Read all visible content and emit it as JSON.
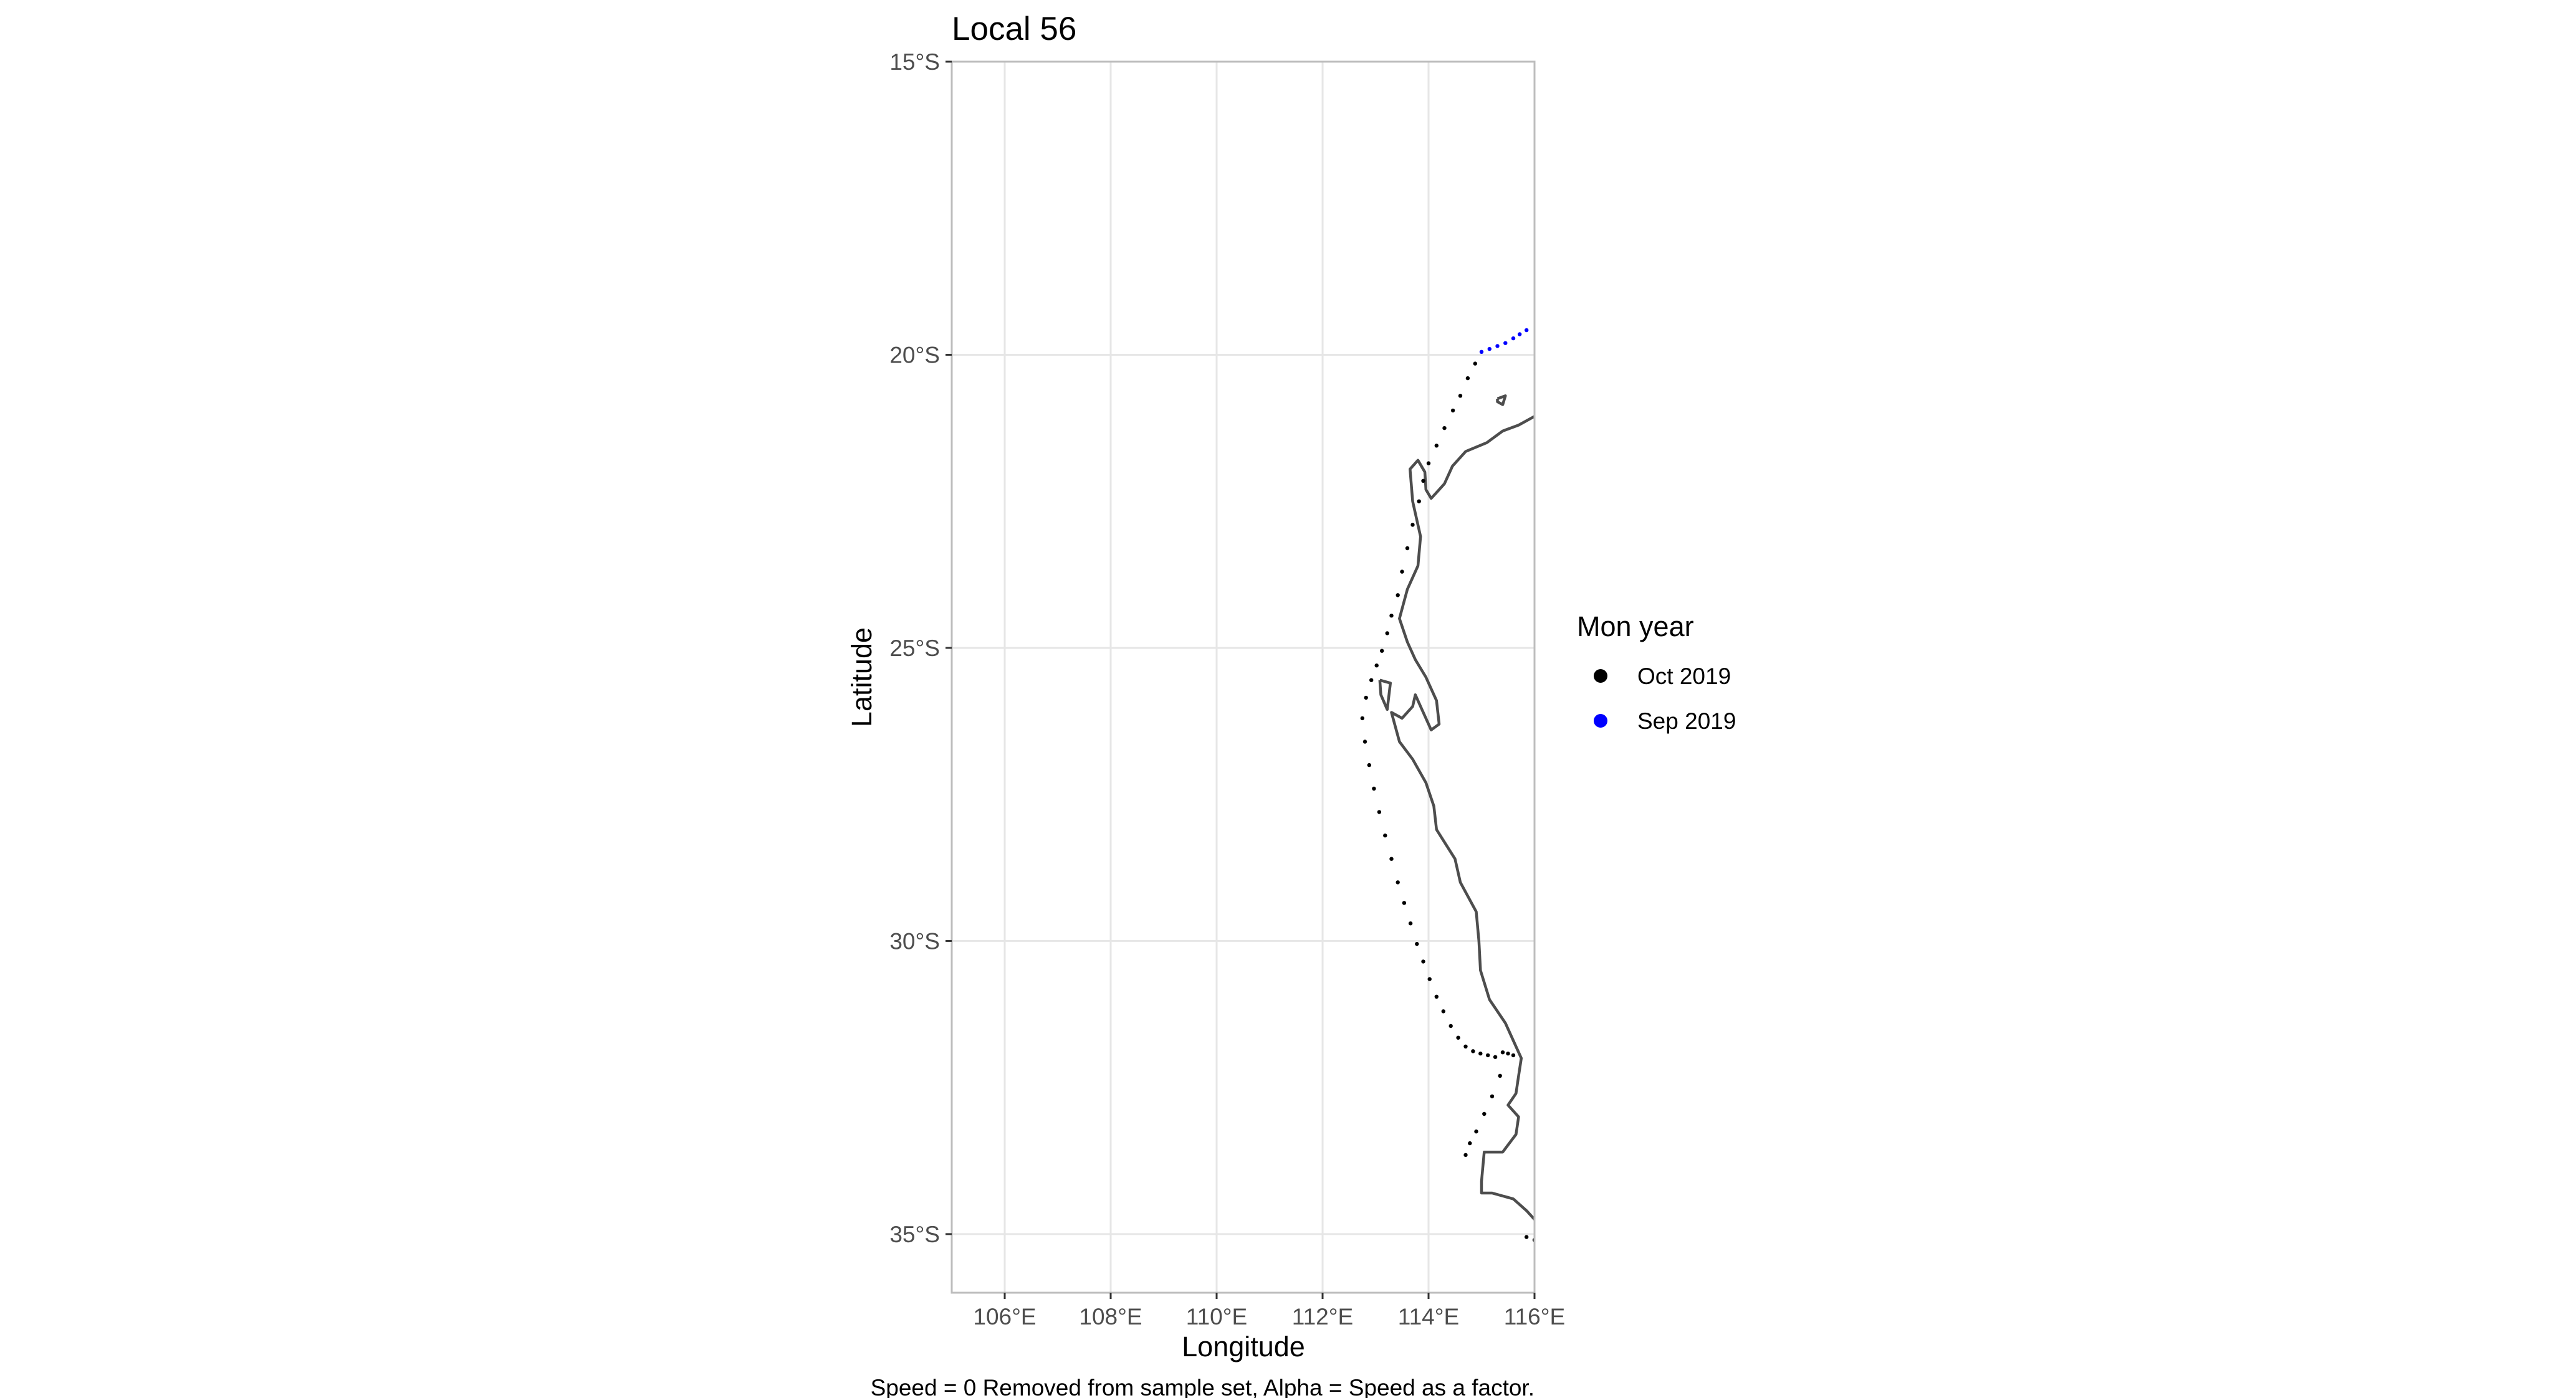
{
  "chart_data": {
    "type": "scatter",
    "title": "Local 56",
    "xlabel": "Longitude",
    "ylabel": "Latitude",
    "caption": "Speed = 0 Removed from sample set, Alpha = Speed as a factor.",
    "xlim": [
      105,
      116
    ],
    "ylim": [
      -36,
      -15
    ],
    "x_ticks": [
      {
        "value": 106,
        "label": "106°E"
      },
      {
        "value": 108,
        "label": "108°E"
      },
      {
        "value": 110,
        "label": "110°E"
      },
      {
        "value": 112,
        "label": "112°E"
      },
      {
        "value": 114,
        "label": "114°E"
      },
      {
        "value": 116,
        "label": "116°E"
      }
    ],
    "y_ticks": [
      {
        "value": -15,
        "label": "15°S"
      },
      {
        "value": -20,
        "label": "20°S"
      },
      {
        "value": -25,
        "label": "25°S"
      },
      {
        "value": -30,
        "label": "30°S"
      },
      {
        "value": -35,
        "label": "35°S"
      }
    ],
    "grid": true,
    "legend": {
      "title": "Mon year",
      "position": "right",
      "entries": [
        {
          "label": "Oct 2019",
          "color": "#000000"
        },
        {
          "label": "Sep 2019",
          "color": "#0000ff"
        }
      ]
    },
    "coastline_color": "#4d4d4d",
    "coastline": [
      [
        [
          116.0,
          -21.05
        ],
        [
          115.7,
          -21.2
        ],
        [
          115.4,
          -21.3
        ],
        [
          115.1,
          -21.5
        ],
        [
          114.7,
          -21.65
        ],
        [
          114.45,
          -21.9
        ],
        [
          114.3,
          -22.2
        ],
        [
          114.15,
          -22.35
        ],
        [
          114.05,
          -22.45
        ],
        [
          113.95,
          -22.3
        ],
        [
          113.93,
          -22.0
        ],
        [
          113.8,
          -21.8
        ],
        [
          113.65,
          -21.95
        ],
        [
          113.7,
          -22.5
        ],
        [
          113.85,
          -23.1
        ],
        [
          113.8,
          -23.6
        ],
        [
          113.6,
          -24.0
        ],
        [
          113.45,
          -24.5
        ],
        [
          113.6,
          -24.9
        ],
        [
          113.75,
          -25.2
        ],
        [
          113.95,
          -25.5
        ],
        [
          114.15,
          -25.9
        ],
        [
          114.2,
          -26.3
        ],
        [
          114.05,
          -26.4
        ],
        [
          113.9,
          -26.1
        ],
        [
          113.75,
          -25.8
        ],
        [
          113.7,
          -26.0
        ],
        [
          113.5,
          -26.2
        ],
        [
          113.3,
          -26.1
        ],
        [
          113.45,
          -26.6
        ],
        [
          113.7,
          -26.9
        ],
        [
          113.95,
          -27.3
        ],
        [
          114.1,
          -27.7
        ],
        [
          114.15,
          -28.1
        ],
        [
          114.5,
          -28.6
        ],
        [
          114.6,
          -29.0
        ],
        [
          114.9,
          -29.5
        ],
        [
          114.95,
          -30.0
        ],
        [
          114.98,
          -30.5
        ],
        [
          115.15,
          -31.0
        ],
        [
          115.45,
          -31.4
        ],
        [
          115.65,
          -31.8
        ],
        [
          115.75,
          -32.0
        ],
        [
          115.7,
          -32.3
        ],
        [
          115.65,
          -32.6
        ],
        [
          115.5,
          -32.8
        ],
        [
          115.7,
          -33.0
        ],
        [
          115.65,
          -33.3
        ],
        [
          115.4,
          -33.6
        ],
        [
          115.05,
          -33.6
        ],
        [
          115.0,
          -34.1
        ],
        [
          115.0,
          -34.3
        ],
        [
          115.2,
          -34.3
        ],
        [
          115.6,
          -34.4
        ],
        [
          115.85,
          -34.6
        ],
        [
          116.0,
          -34.75
        ]
      ],
      [
        [
          113.08,
          -25.55
        ],
        [
          113.28,
          -25.6
        ],
        [
          113.22,
          -26.05
        ],
        [
          113.1,
          -25.8
        ],
        [
          113.08,
          -25.55
        ]
      ],
      [
        [
          115.3,
          -20.75
        ],
        [
          115.45,
          -20.7
        ],
        [
          115.4,
          -20.85
        ],
        [
          115.3,
          -20.8
        ],
        [
          115.3,
          -20.75
        ]
      ]
    ],
    "series": [
      {
        "name": "Sep 2019",
        "color": "#0000ff",
        "x": [
          115.0,
          115.15,
          115.3,
          115.45,
          115.6,
          115.72,
          115.85
        ],
        "y": [
          -19.95,
          -19.9,
          -19.85,
          -19.8,
          -19.72,
          -19.65,
          -19.58
        ]
      },
      {
        "name": "Oct 2019",
        "color": "#000000",
        "x": [
          114.88,
          114.74,
          114.6,
          114.46,
          114.3,
          114.15,
          114.0,
          113.9,
          113.82,
          113.7,
          113.6,
          113.5,
          113.42,
          113.3,
          113.22,
          113.12,
          113.02,
          112.92,
          112.82,
          112.75,
          112.8,
          112.88,
          112.97,
          113.07,
          113.18,
          113.3,
          113.42,
          113.54,
          113.66,
          113.78,
          113.9,
          114.02,
          114.15,
          114.28,
          114.42,
          114.56,
          114.7,
          114.84,
          114.98,
          115.12,
          115.26,
          115.4,
          115.5,
          115.6,
          115.35,
          115.2,
          115.05,
          114.9,
          114.78,
          114.7,
          115.85,
          116.0
        ],
        "y": [
          -20.15,
          -20.4,
          -20.7,
          -20.95,
          -21.25,
          -21.55,
          -21.85,
          -22.15,
          -22.5,
          -22.9,
          -23.3,
          -23.7,
          -24.1,
          -24.45,
          -24.75,
          -25.05,
          -25.3,
          -25.55,
          -25.85,
          -26.2,
          -26.6,
          -27.0,
          -27.4,
          -27.8,
          -28.2,
          -28.6,
          -29.0,
          -29.35,
          -29.7,
          -30.05,
          -30.35,
          -30.65,
          -30.95,
          -31.2,
          -31.45,
          -31.65,
          -31.8,
          -31.88,
          -31.92,
          -31.95,
          -31.98,
          -31.9,
          -31.92,
          -31.95,
          -32.3,
          -32.65,
          -32.95,
          -33.25,
          -33.45,
          -33.65,
          -35.05,
          -35.1
        ]
      }
    ]
  }
}
